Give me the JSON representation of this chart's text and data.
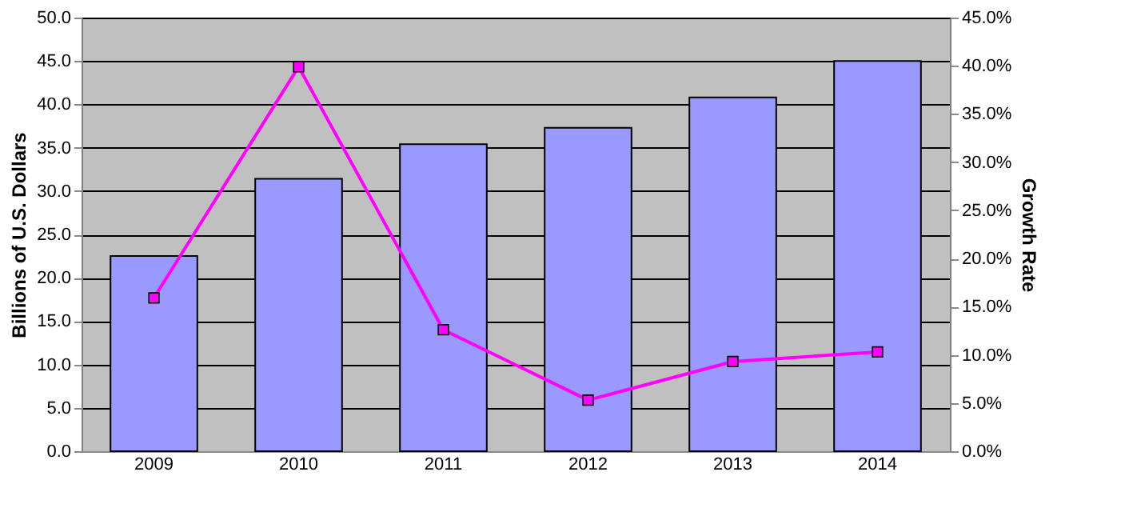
{
  "chart_data": {
    "type": "bar",
    "ylabel": "Billions of U.S. Dollars",
    "y2label": "Growth Rate",
    "categories": [
      "2009",
      "2010",
      "2011",
      "2012",
      "2013",
      "2014"
    ],
    "series": [
      {
        "color": "#9999ff",
        "values": [
          22.5,
          31.4,
          35.4,
          37.3,
          40.8,
          45.0
        ]
      },
      {
        "type": "line",
        "axis": "y2",
        "color": "#ff00ff",
        "marker": "square",
        "line_style": "solid",
        "values": [
          15.9,
          39.9,
          12.6,
          5.3,
          9.3,
          10.3
        ]
      }
    ],
    "ylim": [
      0,
      50
    ],
    "yticks": [
      {
        "value": 0,
        "label": "0.0"
      },
      {
        "value": 5,
        "label": "5.0"
      },
      {
        "value": 10,
        "label": "10.0"
      },
      {
        "value": 15,
        "label": "15.0"
      },
      {
        "value": 20,
        "label": "20.0"
      },
      {
        "value": 25,
        "label": "25.0"
      },
      {
        "value": 30,
        "label": "30.0"
      },
      {
        "value": 35,
        "label": "35.0"
      },
      {
        "value": 40,
        "label": "40.0"
      },
      {
        "value": 45,
        "label": "45.0"
      },
      {
        "value": 50,
        "label": "50.0"
      }
    ],
    "y2lim": [
      0,
      45
    ],
    "y2ticks": [
      {
        "value": 0,
        "label": "0.0%"
      },
      {
        "value": 5,
        "label": "5.0%"
      },
      {
        "value": 10,
        "label": "10.0%"
      },
      {
        "value": 15,
        "label": "15.0%"
      },
      {
        "value": 20,
        "label": "20.0%"
      },
      {
        "value": 25,
        "label": "25.0%"
      },
      {
        "value": 30,
        "label": "30.0%"
      },
      {
        "value": 35,
        "label": "35.0%"
      },
      {
        "value": 40,
        "label": "40.0%"
      },
      {
        "value": 45,
        "label": "45.0%"
      }
    ],
    "grid": "y"
  }
}
